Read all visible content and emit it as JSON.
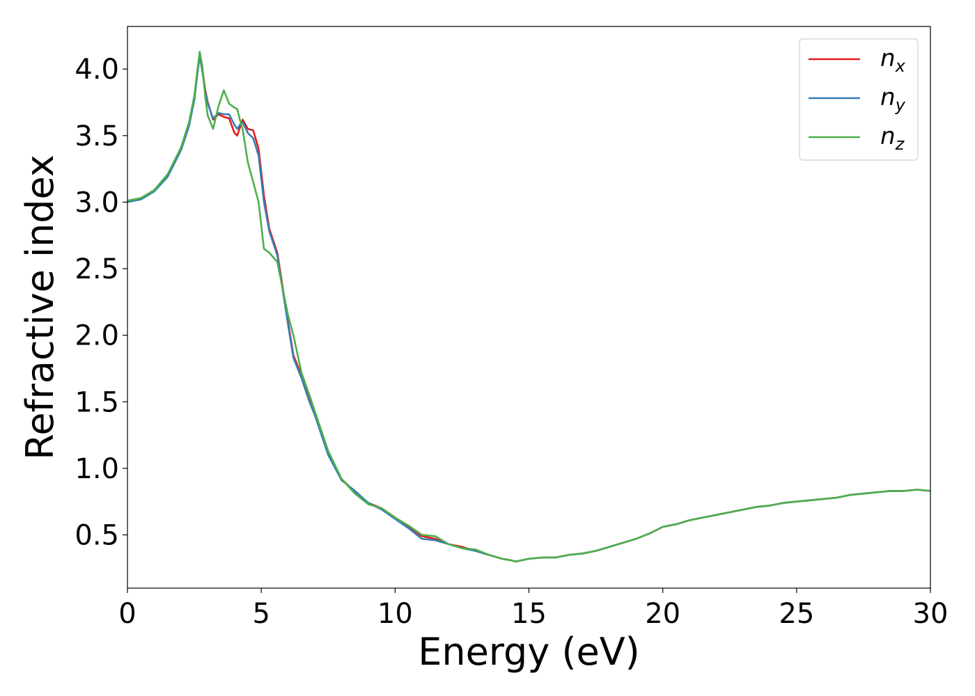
{
  "chart_data": {
    "type": "line",
    "title": "",
    "xlabel": "Energy (eV)",
    "ylabel": "Refractive index",
    "xlim": [
      0,
      30
    ],
    "ylim": [
      0.1,
      4.32
    ],
    "xticks": [
      0,
      5,
      10,
      15,
      20,
      25,
      30
    ],
    "yticks": [
      0.5,
      1.0,
      1.5,
      2.0,
      2.5,
      3.0,
      3.5,
      4.0
    ],
    "xtick_labels": [
      "0",
      "5",
      "10",
      "15",
      "20",
      "25",
      "30"
    ],
    "ytick_labels": [
      "0.5",
      "1.0",
      "1.5",
      "2.0",
      "2.5",
      "3.0",
      "3.5",
      "4.0"
    ],
    "grid": false,
    "legend_position": "top-right",
    "series": [
      {
        "name": "n",
        "subscript": "x",
        "color": "#e41a1c",
        "x": [
          0,
          0.5,
          1.0,
          1.5,
          2.0,
          2.3,
          2.5,
          2.6,
          2.7,
          2.8,
          2.9,
          3.0,
          3.2,
          3.4,
          3.6,
          3.8,
          4.0,
          4.1,
          4.2,
          4.3,
          4.5,
          4.7,
          4.9,
          5.1,
          5.3,
          5.6,
          6.0,
          6.2,
          6.5,
          6.8,
          7.0,
          7.5,
          8.0,
          8.5,
          9.0,
          9.5,
          10.0,
          10.5,
          11.0,
          11.5,
          12.0,
          12.5,
          13.0,
          13.5,
          14.0,
          14.3,
          14.5,
          15.0,
          15.5,
          16.0,
          16.5,
          17.0,
          17.5,
          18.0,
          18.5,
          19.0,
          19.5,
          20.0,
          20.5,
          21.0,
          21.5,
          22.0,
          22.5,
          23.0,
          23.5,
          24.0,
          24.5,
          25.0,
          25.5,
          26.0,
          26.5,
          27.0,
          27.5,
          28.0,
          28.5,
          29.0,
          29.5,
          30.0
        ],
        "y": [
          3.01,
          3.03,
          3.09,
          3.2,
          3.4,
          3.58,
          3.78,
          3.95,
          4.12,
          4.0,
          3.85,
          3.75,
          3.62,
          3.66,
          3.64,
          3.63,
          3.52,
          3.5,
          3.56,
          3.62,
          3.55,
          3.54,
          3.4,
          3.05,
          2.8,
          2.62,
          2.1,
          1.85,
          1.7,
          1.52,
          1.42,
          1.12,
          0.92,
          0.82,
          0.74,
          0.7,
          0.63,
          0.56,
          0.49,
          0.47,
          0.43,
          0.41,
          0.38,
          0.35,
          0.32,
          0.31,
          0.3,
          0.32,
          0.33,
          0.33,
          0.35,
          0.36,
          0.38,
          0.41,
          0.44,
          0.47,
          0.51,
          0.56,
          0.58,
          0.61,
          0.63,
          0.65,
          0.67,
          0.69,
          0.71,
          0.72,
          0.74,
          0.75,
          0.76,
          0.77,
          0.78,
          0.8,
          0.81,
          0.82,
          0.83,
          0.83,
          0.84,
          0.83
        ]
      },
      {
        "name": "n",
        "subscript": "y",
        "color": "#377eb8",
        "x": [
          0,
          0.5,
          1.0,
          1.5,
          2.0,
          2.3,
          2.5,
          2.6,
          2.7,
          2.8,
          2.9,
          3.0,
          3.2,
          3.4,
          3.6,
          3.8,
          4.0,
          4.1,
          4.2,
          4.3,
          4.5,
          4.7,
          4.9,
          5.1,
          5.3,
          5.6,
          6.0,
          6.2,
          6.5,
          6.8,
          7.0,
          7.5,
          8.0,
          8.5,
          9.0,
          9.5,
          10.0,
          10.5,
          11.0,
          11.5,
          12.0,
          12.5,
          13.0,
          13.5,
          14.0,
          14.3,
          14.5,
          15.0,
          15.5,
          16.0,
          16.5,
          17.0,
          17.5,
          18.0,
          18.5,
          19.0,
          19.5,
          20.0,
          20.5,
          21.0,
          21.5,
          22.0,
          22.5,
          23.0,
          23.5,
          24.0,
          24.5,
          25.0,
          25.5,
          26.0,
          26.5,
          27.0,
          27.5,
          28.0,
          28.5,
          29.0,
          29.5,
          30.0
        ],
        "y": [
          3.0,
          3.02,
          3.08,
          3.19,
          3.39,
          3.57,
          3.77,
          3.94,
          4.1,
          3.98,
          3.83,
          3.74,
          3.63,
          3.67,
          3.66,
          3.66,
          3.58,
          3.55,
          3.58,
          3.6,
          3.52,
          3.48,
          3.35,
          3.0,
          2.78,
          2.6,
          2.08,
          1.83,
          1.68,
          1.5,
          1.4,
          1.1,
          0.91,
          0.83,
          0.74,
          0.69,
          0.62,
          0.55,
          0.47,
          0.46,
          0.43,
          0.4,
          0.38,
          0.35,
          0.32,
          0.31,
          0.3,
          0.32,
          0.33,
          0.33,
          0.35,
          0.36,
          0.38,
          0.41,
          0.44,
          0.47,
          0.51,
          0.56,
          0.58,
          0.61,
          0.63,
          0.65,
          0.67,
          0.69,
          0.71,
          0.72,
          0.74,
          0.75,
          0.76,
          0.77,
          0.78,
          0.8,
          0.81,
          0.82,
          0.83,
          0.83,
          0.84,
          0.83
        ]
      },
      {
        "name": "n",
        "subscript": "z",
        "color": "#4daf4a",
        "x": [
          0,
          0.5,
          1.0,
          1.5,
          2.0,
          2.3,
          2.5,
          2.6,
          2.7,
          2.8,
          2.9,
          3.0,
          3.2,
          3.4,
          3.6,
          3.8,
          4.0,
          4.1,
          4.2,
          4.3,
          4.5,
          4.7,
          4.9,
          5.1,
          5.3,
          5.6,
          6.0,
          6.2,
          6.5,
          6.8,
          7.0,
          7.5,
          8.0,
          8.5,
          9.0,
          9.5,
          10.0,
          10.5,
          11.0,
          11.5,
          12.0,
          12.5,
          13.0,
          13.5,
          14.0,
          14.3,
          14.5,
          15.0,
          15.5,
          16.0,
          16.5,
          17.0,
          17.5,
          18.0,
          18.5,
          19.0,
          19.5,
          20.0,
          20.5,
          21.0,
          21.5,
          22.0,
          22.5,
          23.0,
          23.5,
          24.0,
          24.5,
          25.0,
          25.5,
          26.0,
          26.5,
          27.0,
          27.5,
          28.0,
          28.5,
          29.0,
          29.5,
          30.0
        ],
        "y": [
          3.01,
          3.03,
          3.09,
          3.21,
          3.41,
          3.6,
          3.8,
          3.97,
          4.13,
          4.02,
          3.8,
          3.65,
          3.55,
          3.72,
          3.84,
          3.74,
          3.71,
          3.7,
          3.62,
          3.55,
          3.3,
          3.15,
          3.0,
          2.65,
          2.62,
          2.55,
          2.15,
          2.0,
          1.72,
          1.55,
          1.43,
          1.13,
          0.92,
          0.81,
          0.73,
          0.7,
          0.63,
          0.57,
          0.5,
          0.49,
          0.43,
          0.4,
          0.39,
          0.35,
          0.32,
          0.31,
          0.3,
          0.32,
          0.33,
          0.33,
          0.35,
          0.36,
          0.38,
          0.41,
          0.44,
          0.47,
          0.51,
          0.56,
          0.58,
          0.61,
          0.63,
          0.65,
          0.67,
          0.69,
          0.71,
          0.72,
          0.74,
          0.75,
          0.76,
          0.77,
          0.78,
          0.8,
          0.81,
          0.82,
          0.83,
          0.83,
          0.84,
          0.83
        ]
      }
    ]
  }
}
